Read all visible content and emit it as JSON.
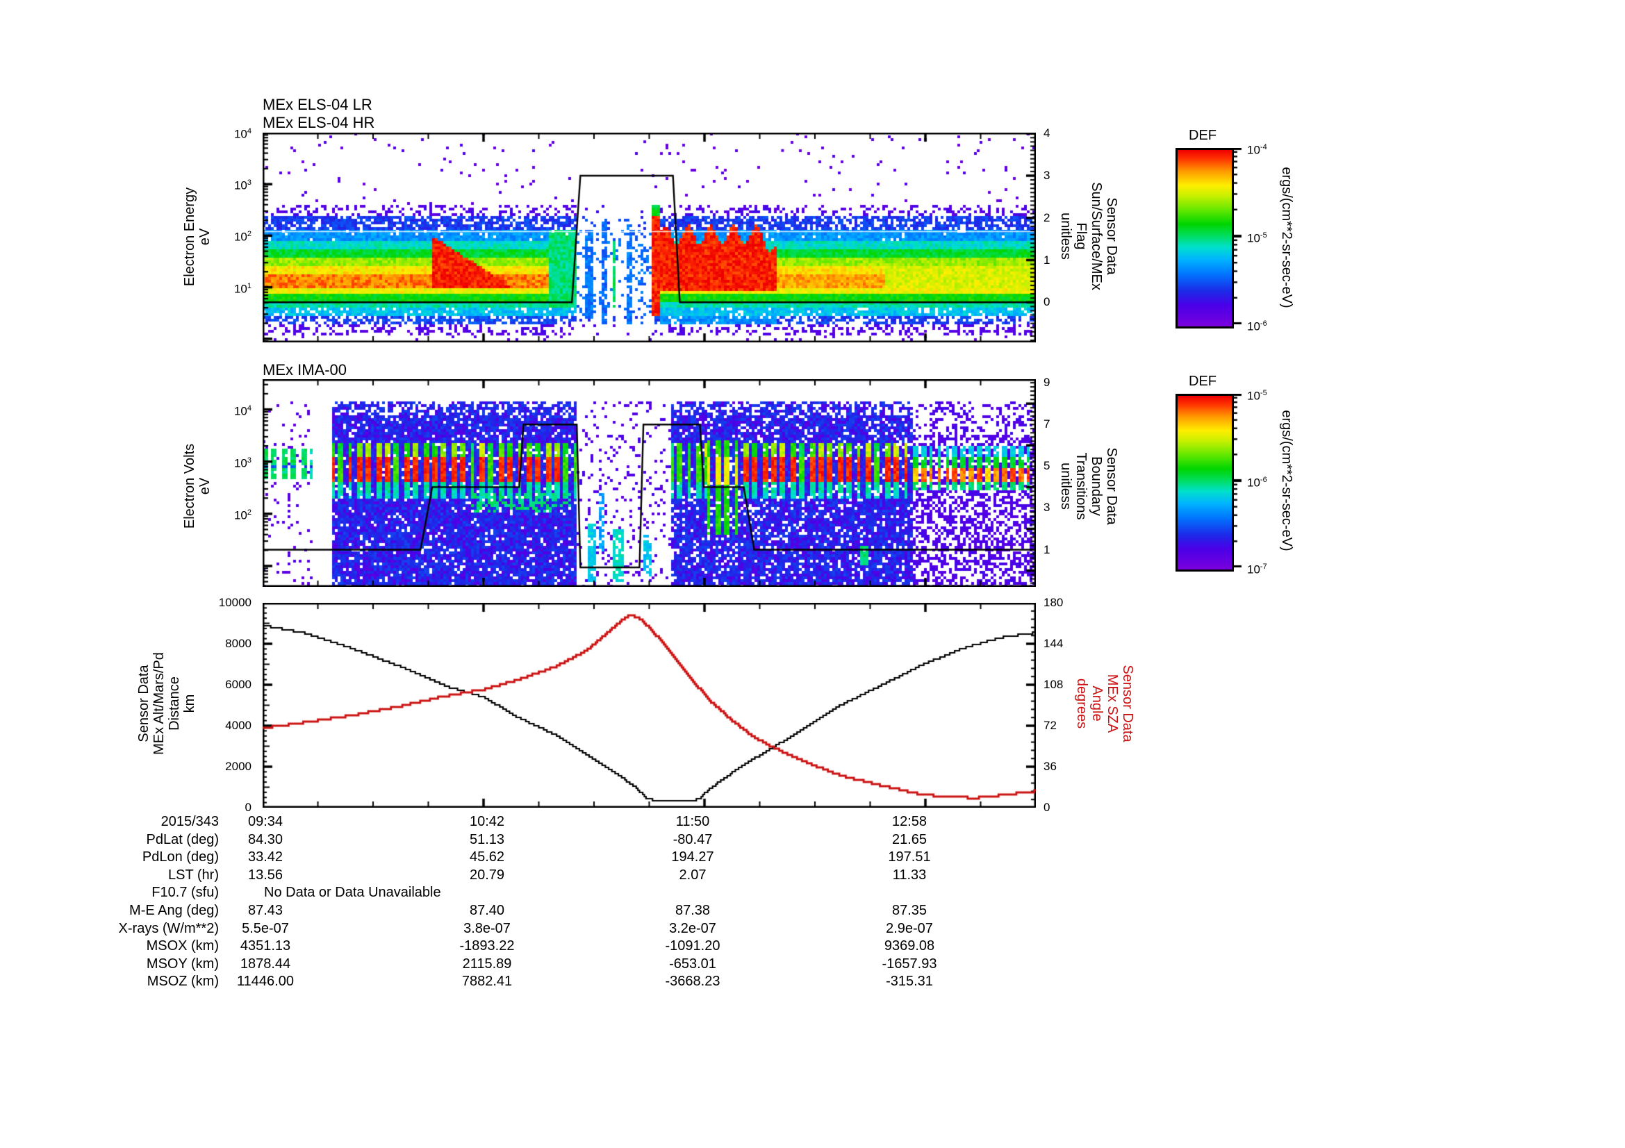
{
  "meta": {
    "log_base_label": "10",
    "background": "#ffffff"
  },
  "colors": {
    "trace_black": "#000000",
    "sza_red": "#cc1111",
    "rainbow": [
      [
        0,
        "#7a00dd"
      ],
      [
        0.12,
        "#4a00e8"
      ],
      [
        0.2,
        "#1c2ae8"
      ],
      [
        0.3,
        "#0077ff"
      ],
      [
        0.38,
        "#00b4ff"
      ],
      [
        0.45,
        "#00e0cc"
      ],
      [
        0.52,
        "#00dd55"
      ],
      [
        0.58,
        "#00d500"
      ],
      [
        0.66,
        "#63e800"
      ],
      [
        0.74,
        "#c8f000"
      ],
      [
        0.8,
        "#ffee00"
      ],
      [
        0.88,
        "#ff9900"
      ],
      [
        0.95,
        "#ff3300"
      ],
      [
        1,
        "#ee0000"
      ]
    ]
  },
  "chart_data": [
    {
      "id": "els",
      "type": "heatmap",
      "title": "MEx ELS-04 LR\nMEx ELS-04 HR",
      "x": {
        "date": "2015/343",
        "ticks": [
          "09:34",
          "10:42",
          "11:50",
          "12:58"
        ],
        "tick_minutes": [
          0,
          68,
          136,
          204
        ],
        "span_minutes": 238,
        "minor_step": 17
      },
      "y": {
        "label": "Electron Energy\neV",
        "scale": "log",
        "tick_exponents": [
          1,
          2,
          3,
          4
        ],
        "log_range": [
          -0.07,
          4.0
        ]
      },
      "y2": {
        "label": "Sensor Data\nSun/Surface/MEx\nFlag\nunitless",
        "ticks": [
          0,
          1,
          2,
          3,
          4
        ],
        "range": [
          -0.95,
          4.02
        ],
        "minor_step": 0.1
      },
      "gridline_logE": 2.08,
      "flag_trace": [
        [
          0,
          0
        ],
        [
          95.2,
          0
        ],
        [
          97.8,
          3
        ],
        [
          126.3,
          3
        ],
        [
          128.4,
          0
        ],
        [
          238,
          0
        ]
      ],
      "profile": [
        {
          "lo": 2.62,
          "hi": 9.0,
          "v": 0.07,
          "d": 0.02
        },
        {
          "lo": 2.38,
          "hi": 2.62,
          "v": 0.1,
          "d": 0.3
        },
        {
          "lo": 2.1,
          "hi": 2.38,
          "v": 0.22,
          "d": 0.72
        },
        {
          "lo": 1.92,
          "hi": 2.1,
          "v": 0.34,
          "d": 0.95
        },
        {
          "lo": 1.72,
          "hi": 1.92,
          "v": 0.45,
          "d": 1
        },
        {
          "lo": 1.55,
          "hi": 1.72,
          "v": 0.55,
          "d": 1
        },
        {
          "lo": 1.4,
          "hi": 1.55,
          "v": 0.7,
          "d": 1
        },
        {
          "lo": 1.24,
          "hi": 1.4,
          "v": 0.8,
          "d": 1
        },
        {
          "lo": 0.98,
          "hi": 1.24,
          "v": 0.87,
          "d": 1
        },
        {
          "lo": 0.86,
          "hi": 0.98,
          "v": 0.78,
          "d": 1
        },
        {
          "lo": 0.72,
          "hi": 0.86,
          "v": 0.58,
          "d": 1
        },
        {
          "lo": 0.6,
          "hi": 0.72,
          "v": 0.47,
          "d": 1
        },
        {
          "lo": 0.45,
          "hi": 0.6,
          "v": 0.4,
          "d": 0.88
        },
        {
          "lo": 0.28,
          "hi": 0.45,
          "v": 0.22,
          "d": 0.6
        },
        {
          "lo": 0.08,
          "hi": 0.28,
          "v": 0.1,
          "d": 0.32
        },
        {
          "lo": -1.0,
          "hi": 0.08,
          "v": 0.08,
          "d": 0.06
        }
      ],
      "regions": [
        {
          "type": "yellow_late",
          "t0": 192,
          "t1": 238
        },
        {
          "type": "green_cols",
          "t0": 88.5,
          "t1": 97
        },
        {
          "type": "gap",
          "t0": 97,
          "t1": 119.5
        },
        {
          "type": "col",
          "t0": 99.5,
          "t1": 101.5,
          "lo": 0.4,
          "hi": 2.1,
          "v": 0.3,
          "d": 0.85
        },
        {
          "type": "col",
          "t0": 104,
          "t1": 106.2,
          "lo": 0.3,
          "hi": 2.3,
          "v": 0.28,
          "d": 0.8
        },
        {
          "type": "col",
          "t0": 107.5,
          "t1": 108.7,
          "lo": 0.6,
          "hi": 1.9,
          "v": 0.52,
          "d": 0.9
        },
        {
          "type": "col",
          "t0": 112,
          "t1": 114,
          "lo": 0.3,
          "hi": 2.2,
          "v": 0.3,
          "d": 0.8
        },
        {
          "type": "col",
          "t0": 116,
          "t1": 117.5,
          "lo": 0.5,
          "hi": 2.0,
          "v": 0.28,
          "d": 0.6
        },
        {
          "type": "blob",
          "t0": 52.5,
          "t1": 88.5,
          "lo": 0.98,
          "hi": 1.98,
          "slope": -0.004,
          "v": 0.97
        },
        {
          "type": "streak",
          "t0": 119.5,
          "t1": 122.3,
          "lo": 0.45,
          "hi": 2.38,
          "v": 0.97,
          "capv": 0.55,
          "caphi": 2.62
        },
        {
          "type": "blob2",
          "t0": 122.3,
          "t1": 158.5,
          "lo": 0.92,
          "base_hi": 2.02,
          "amp": 0.18,
          "v": 0.97
        },
        {
          "type": "subboost",
          "t0": 122.3,
          "t1": 158.5,
          "lo": 0.28,
          "hi": 0.45,
          "v": 0.33,
          "d": 0.85
        },
        {
          "type": "subboost",
          "t0": 52.5,
          "t1": 88.5,
          "lo": 0.28,
          "hi": 0.45,
          "v": 0.25,
          "d": 0.75
        },
        {
          "type": "dot",
          "t": 117.2,
          "logE": 3.85
        },
        {
          "type": "dot",
          "t": 159.6,
          "logE": 3.68
        }
      ],
      "colorbar": {
        "title": "DEF",
        "units": "ergs/(cm**2-sr-sec-eV)",
        "tick_exponents": [
          -4,
          -5,
          -6
        ]
      }
    },
    {
      "id": "ima",
      "type": "heatmap",
      "title": "MEx IMA-00",
      "x": {
        "ticks": [
          "09:34",
          "10:42",
          "11:50",
          "12:58"
        ],
        "tick_minutes": [
          0,
          68,
          136,
          204
        ],
        "span_minutes": 238,
        "minor_step": 17
      },
      "y": {
        "label": "Electron Volts\neV",
        "scale": "log",
        "tick_exponents": [
          2,
          3,
          4
        ],
        "log_range": [
          0.6,
          4.58
        ]
      },
      "y2": {
        "label": "Sensor Data\nBoundary\nTransitions\nunitless",
        "ticks": [
          1,
          3,
          5,
          7,
          9
        ],
        "range": [
          -0.78,
          9.17
        ],
        "minor_step": 0.2
      },
      "boundary_trace": [
        [
          0,
          1
        ],
        [
          48.6,
          1
        ],
        [
          52.2,
          4
        ],
        [
          79,
          4
        ],
        [
          80.3,
          7
        ],
        [
          96.7,
          7
        ],
        [
          97.8,
          0.15
        ],
        [
          116,
          0.15
        ],
        [
          117.2,
          7
        ],
        [
          134.6,
          7
        ],
        [
          135.8,
          4
        ],
        [
          148.1,
          4
        ],
        [
          151.3,
          1
        ],
        [
          238,
          1
        ]
      ],
      "segments": [
        {
          "type": "beads",
          "t0": 0,
          "t1": 15.4
        },
        {
          "type": "blank",
          "t0": 15.4,
          "t1": 21
        },
        {
          "type": "dense",
          "t0": 21,
          "t1": 97,
          "stripes": "red"
        },
        {
          "type": "sparse",
          "t0": 97,
          "t1": 126
        },
        {
          "type": "dense",
          "t0": 126,
          "t1": 200,
          "stripes": "mixed"
        },
        {
          "type": "purple",
          "t0": 200,
          "t1": 238,
          "stripes": "beads2"
        }
      ],
      "cols": [
        {
          "t0": 100.5,
          "t1": 103,
          "lo": 0.7,
          "hi": 1.8,
          "v": 0.42,
          "d": 0.8
        },
        {
          "t0": 103.5,
          "t1": 105.5,
          "lo": 1.3,
          "hi": 2.4,
          "v": 0.35,
          "d": 0.7
        },
        {
          "t0": 108,
          "t1": 111,
          "lo": 0.7,
          "hi": 1.7,
          "v": 0.45,
          "d": 0.75
        },
        {
          "t0": 117,
          "t1": 119.5,
          "lo": 0.8,
          "hi": 1.6,
          "v": 0.4,
          "d": 0.6
        }
      ],
      "green_blob": {
        "t0": 183.5,
        "t1": 186.5,
        "lo": 1.0,
        "hi": 1.4,
        "v": 0.5,
        "d": 0.9
      },
      "colorbar": {
        "title": "DEF",
        "units": "ergs/(cm**2-sr-sec-eV)",
        "tick_exponents": [
          -5,
          -6,
          -7
        ]
      }
    },
    {
      "id": "orbit",
      "type": "line",
      "x": {
        "ticks": [
          "09:34",
          "10:42",
          "11:50",
          "12:58"
        ],
        "tick_minutes": [
          0,
          68,
          136,
          204
        ],
        "span_minutes": 238,
        "minor_step": 17
      },
      "y": {
        "label": "Sensor Data\nMEx Alt/Mars/Pd\nDistance\nkm",
        "range": [
          0,
          10000
        ],
        "tick_step": 2000,
        "tick_labels": [
          "0",
          "2000",
          "4000",
          "6000",
          "8000",
          "10000"
        ]
      },
      "y2": {
        "label": "Sensor Data\nMEx SZA\nAngle\ndegrees",
        "range": [
          0,
          180
        ],
        "tick_step": 36,
        "tick_labels": [
          "0",
          "36",
          "72",
          "108",
          "144",
          "180"
        ],
        "color": "#cc1111"
      },
      "series": [
        {
          "name": "MEx Alt/Mars/Pd Distance",
          "units": "km",
          "axis": "left",
          "color": "#000000",
          "points": [
            [
              0,
              8900
            ],
            [
              13,
              8520
            ],
            [
              27,
              7800
            ],
            [
              42,
              6900
            ],
            [
              56,
              5950
            ],
            [
              68,
              5400
            ],
            [
              78,
              4440
            ],
            [
              90,
              3560
            ],
            [
              99,
              2660
            ],
            [
              109,
              1640
            ],
            [
              114,
              1080
            ],
            [
              118,
              480
            ],
            [
              121,
              300
            ],
            [
              131,
              290
            ],
            [
              134,
              420
            ],
            [
              138,
              980
            ],
            [
              147,
              2000
            ],
            [
              157,
              2950
            ],
            [
              167,
              3900
            ],
            [
              178,
              5020
            ],
            [
              191,
              6030
            ],
            [
              203,
              6980
            ],
            [
              215,
              7760
            ],
            [
              227,
              8300
            ],
            [
              238,
              8550
            ]
          ]
        },
        {
          "name": "MEx SZA Angle",
          "units": "degrees",
          "axis": "right",
          "color": "#cc1111",
          "points": [
            [
              0,
              70
            ],
            [
              13,
              75
            ],
            [
              27,
              81
            ],
            [
              42,
              89
            ],
            [
              56,
              98
            ],
            [
              68,
              104
            ],
            [
              78,
              112
            ],
            [
              90,
              124
            ],
            [
              99,
              137
            ],
            [
              106,
              154
            ],
            [
              111,
              166
            ],
            [
              113,
              169.5
            ],
            [
              116,
              166
            ],
            [
              120,
              155
            ],
            [
              127,
              131
            ],
            [
              133,
              109
            ],
            [
              138,
              93
            ],
            [
              143,
              80
            ],
            [
              150,
              64
            ],
            [
              157,
              53
            ],
            [
              167,
              40
            ],
            [
              178,
              28
            ],
            [
              191,
              19
            ],
            [
              203,
              11.5
            ],
            [
              210,
              9.8
            ],
            [
              219,
              8.5
            ],
            [
              229,
              11.5
            ],
            [
              238,
              14.6
            ]
          ]
        }
      ]
    }
  ],
  "table": {
    "rows": [
      {
        "label": "PdLat (deg)",
        "values": [
          "84.30",
          "51.13",
          "-80.47",
          "21.65"
        ]
      },
      {
        "label": "PdLon (deg)",
        "values": [
          "33.42",
          "45.62",
          "194.27",
          "197.51"
        ]
      },
      {
        "label": "LST (hr)",
        "values": [
          "13.56",
          "20.79",
          "2.07",
          "11.33"
        ]
      },
      {
        "label": "F10.7 (sfu)",
        "span_text": "No Data or Data Unavailable"
      },
      {
        "label": "M-E Ang (deg)",
        "values": [
          "87.43",
          "87.40",
          "87.38",
          "87.35"
        ]
      },
      {
        "label": "X-rays (W/m**2)",
        "values": [
          "5.5e-07",
          "3.8e-07",
          "3.2e-07",
          "2.9e-07"
        ]
      },
      {
        "label": "MSOX (km)",
        "values": [
          "4351.13",
          "-1893.22",
          "-1091.20",
          "9369.08"
        ]
      },
      {
        "label": "MSOY (km)",
        "values": [
          "1878.44",
          "2115.89",
          "-653.01",
          "-1657.93"
        ]
      },
      {
        "label": "MSOZ (km)",
        "values": [
          "11446.00",
          "7882.41",
          "-3668.23",
          "-315.31"
        ]
      }
    ]
  }
}
